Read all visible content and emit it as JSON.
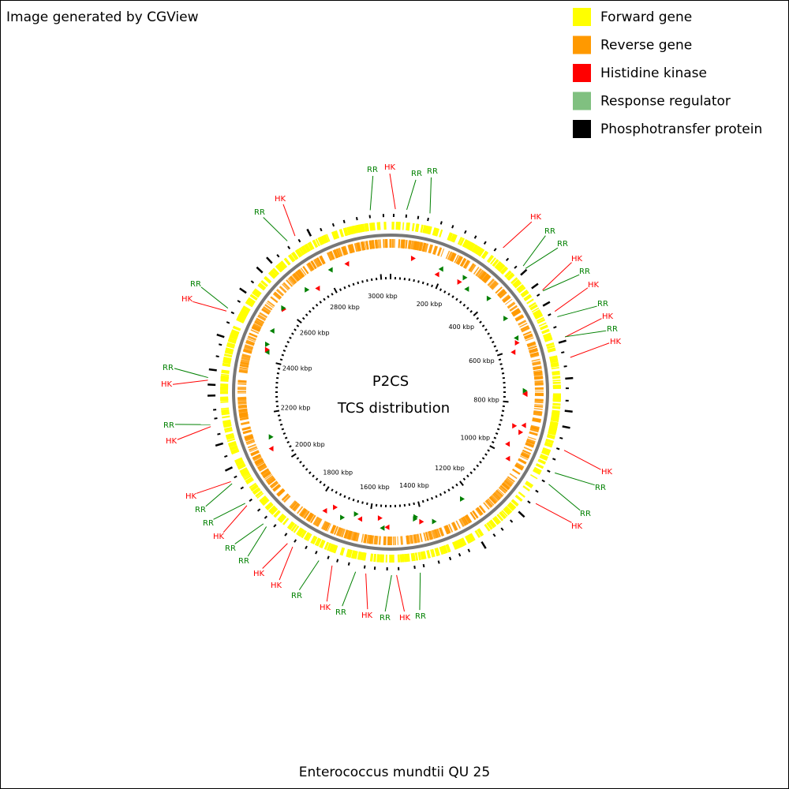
{
  "header": "Image generated by CGView",
  "legend": [
    {
      "label": "Forward gene",
      "color": "#ffff00"
    },
    {
      "label": "Reverse gene",
      "color": "#ff9900"
    },
    {
      "label": "Histidine kinase",
      "color": "#ff0000"
    },
    {
      "label": "Response regulator",
      "color": "#80c080"
    },
    {
      "label": "Phosphotransfer protein",
      "color": "#000000"
    }
  ],
  "center": {
    "title": "P2CS",
    "subtitle": "TCS distribution"
  },
  "ticks": [
    "200 kbp",
    "400 kbp",
    "600 kbp",
    "800 kbp",
    "1000 kbp",
    "1200 kbp",
    "1400 kbp",
    "1600 kbp",
    "1800 kbp",
    "2000 kbp",
    "2200 kbp",
    "2400 kbp",
    "2600 kbp",
    "2800 kbp",
    "3000 kbp"
  ],
  "callouts": [
    "RR",
    "HK",
    "RR",
    "RR",
    "HK",
    "RR",
    "RR",
    "HK",
    "RR",
    "HK",
    "RR",
    "HK",
    "RR",
    "HK",
    "HK",
    "RR",
    "RR",
    "HK",
    "RR",
    "HK",
    "RR",
    "HK",
    "RR",
    "HK",
    "RR",
    "HK",
    "HK",
    "RR",
    "RR",
    "HK",
    "RR",
    "RR",
    "HK",
    "HK",
    "RR",
    "HK",
    "RR",
    "HK",
    "RR",
    "RR",
    "HK"
  ],
  "footer": "Enterococcus mundtii QU 25"
}
